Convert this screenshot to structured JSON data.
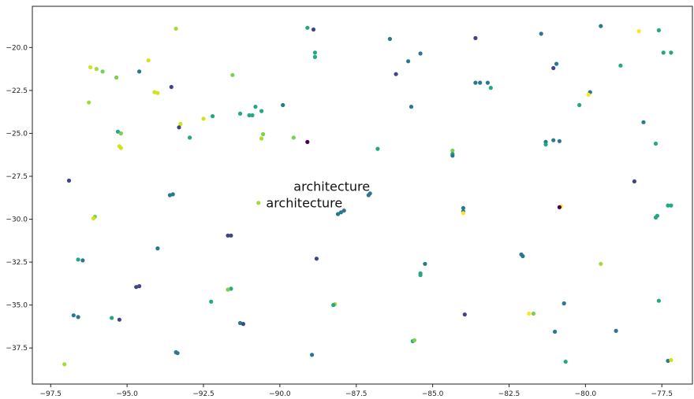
{
  "chart_data": {
    "type": "scatter",
    "title": "",
    "xlabel": "",
    "ylabel": "",
    "xlim": [
      -98.1,
      -76.5
    ],
    "ylim": [
      -39.6,
      -17.6
    ],
    "grid": false,
    "xticks": [
      -97.5,
      -95.0,
      -92.5,
      -90.0,
      -87.5,
      -85.0,
      -82.5,
      -80.0,
      -77.5
    ],
    "yticks": [
      -20.0,
      -22.5,
      -25.0,
      -27.5,
      -30.0,
      -32.5,
      -35.0,
      -37.5
    ],
    "annotations": [
      {
        "text": "architecture",
        "x": -89.55,
        "y": -28.35
      },
      {
        "text": "architecture",
        "x": -90.45,
        "y": -29.3
      }
    ],
    "points": [
      {
        "x": -93.4,
        "y": -18.9,
        "c": "#a5db36"
      },
      {
        "x": -89.1,
        "y": -18.85,
        "c": "#22a884"
      },
      {
        "x": -88.9,
        "y": -18.95,
        "c": "#414487"
      },
      {
        "x": -86.4,
        "y": -19.5,
        "c": "#2a788e"
      },
      {
        "x": -83.6,
        "y": -19.45,
        "c": "#414487"
      },
      {
        "x": -81.45,
        "y": -19.2,
        "c": "#2a788e"
      },
      {
        "x": -79.5,
        "y": -18.75,
        "c": "#2a788e"
      },
      {
        "x": -78.25,
        "y": -19.05,
        "c": "#fde725"
      },
      {
        "x": -77.6,
        "y": -19.0,
        "c": "#22a884"
      },
      {
        "x": -88.85,
        "y": -20.3,
        "c": "#22a884"
      },
      {
        "x": -88.85,
        "y": -20.55,
        "c": "#22a884"
      },
      {
        "x": -94.3,
        "y": -20.75,
        "c": "#d2e21b"
      },
      {
        "x": -85.4,
        "y": -20.35,
        "c": "#2a788e"
      },
      {
        "x": -85.8,
        "y": -20.8,
        "c": "#2a788e"
      },
      {
        "x": -80.95,
        "y": -20.95,
        "c": "#2a788e"
      },
      {
        "x": -81.05,
        "y": -21.2,
        "c": "#414487"
      },
      {
        "x": -78.85,
        "y": -21.05,
        "c": "#22a884"
      },
      {
        "x": -77.45,
        "y": -20.3,
        "c": "#22a884"
      },
      {
        "x": -77.2,
        "y": -20.3,
        "c": "#22a884"
      },
      {
        "x": -96.2,
        "y": -21.15,
        "c": "#d2e21b"
      },
      {
        "x": -96.0,
        "y": -21.25,
        "c": "#a5db36"
      },
      {
        "x": -95.8,
        "y": -21.4,
        "c": "#7ad151"
      },
      {
        "x": -95.35,
        "y": -21.75,
        "c": "#7ad151"
      },
      {
        "x": -94.6,
        "y": -21.4,
        "c": "#2a788e"
      },
      {
        "x": -91.55,
        "y": -21.6,
        "c": "#7ad151"
      },
      {
        "x": -86.2,
        "y": -21.55,
        "c": "#414487"
      },
      {
        "x": -93.55,
        "y": -22.3,
        "c": "#414487"
      },
      {
        "x": -94.1,
        "y": -22.6,
        "c": "#d2e21b"
      },
      {
        "x": -94.0,
        "y": -22.65,
        "c": "#d2e21b"
      },
      {
        "x": -83.6,
        "y": -22.05,
        "c": "#2a788e"
      },
      {
        "x": -83.45,
        "y": -22.05,
        "c": "#2a788e"
      },
      {
        "x": -83.2,
        "y": -22.05,
        "c": "#2a788e"
      },
      {
        "x": -83.1,
        "y": -22.35,
        "c": "#22a884"
      },
      {
        "x": -79.85,
        "y": -22.6,
        "c": "#2a788e"
      },
      {
        "x": -79.9,
        "y": -22.75,
        "c": "#fde725"
      },
      {
        "x": -96.25,
        "y": -23.2,
        "c": "#a5db36"
      },
      {
        "x": -89.9,
        "y": -23.35,
        "c": "#2a788e"
      },
      {
        "x": -90.8,
        "y": -23.45,
        "c": "#22a884"
      },
      {
        "x": -90.6,
        "y": -23.7,
        "c": "#22a884"
      },
      {
        "x": -91.3,
        "y": -23.85,
        "c": "#22a884"
      },
      {
        "x": -91.0,
        "y": -23.95,
        "c": "#22a884"
      },
      {
        "x": -90.9,
        "y": -23.95,
        "c": "#22a884"
      },
      {
        "x": -85.7,
        "y": -23.45,
        "c": "#2a788e"
      },
      {
        "x": -80.2,
        "y": -23.35,
        "c": "#22a884"
      },
      {
        "x": -92.2,
        "y": -24.0,
        "c": "#22a884"
      },
      {
        "x": -92.5,
        "y": -24.15,
        "c": "#d2e21b"
      },
      {
        "x": -93.25,
        "y": -24.45,
        "c": "#d2e21b"
      },
      {
        "x": -93.3,
        "y": -24.65,
        "c": "#414487"
      },
      {
        "x": -78.1,
        "y": -24.35,
        "c": "#2a788e"
      },
      {
        "x": -95.3,
        "y": -24.9,
        "c": "#22a884"
      },
      {
        "x": -95.2,
        "y": -25.0,
        "c": "#7ad151"
      },
      {
        "x": -92.95,
        "y": -25.25,
        "c": "#22a884"
      },
      {
        "x": -90.55,
        "y": -25.05,
        "c": "#7ad151"
      },
      {
        "x": -90.6,
        "y": -25.3,
        "c": "#a5db36"
      },
      {
        "x": -89.55,
        "y": -25.25,
        "c": "#7ad151"
      },
      {
        "x": -89.1,
        "y": -25.5,
        "c": "#440154"
      },
      {
        "x": -81.3,
        "y": -25.5,
        "c": "#2a788e"
      },
      {
        "x": -81.3,
        "y": -25.65,
        "c": "#22a884"
      },
      {
        "x": -81.05,
        "y": -25.4,
        "c": "#2a788e"
      },
      {
        "x": -80.85,
        "y": -25.45,
        "c": "#2a788e"
      },
      {
        "x": -77.7,
        "y": -25.6,
        "c": "#22a884"
      },
      {
        "x": -95.25,
        "y": -25.75,
        "c": "#d2e21b"
      },
      {
        "x": -95.2,
        "y": -25.85,
        "c": "#d2e21b"
      },
      {
        "x": -86.8,
        "y": -25.9,
        "c": "#22a884"
      },
      {
        "x": -84.35,
        "y": -26.0,
        "c": "#7ad151"
      },
      {
        "x": -84.35,
        "y": -26.2,
        "c": "#22a884"
      },
      {
        "x": -84.35,
        "y": -26.3,
        "c": "#2a788e"
      },
      {
        "x": -96.9,
        "y": -27.75,
        "c": "#414487"
      },
      {
        "x": -78.4,
        "y": -27.8,
        "c": "#414487"
      },
      {
        "x": -93.6,
        "y": -28.6,
        "c": "#2a788e"
      },
      {
        "x": -93.5,
        "y": -28.55,
        "c": "#2a788e"
      },
      {
        "x": -87.1,
        "y": -28.6,
        "c": "#2a788e"
      },
      {
        "x": -87.05,
        "y": -28.5,
        "c": "#2a788e"
      },
      {
        "x": -90.7,
        "y": -29.05,
        "c": "#a5db36"
      },
      {
        "x": -88.0,
        "y": -29.6,
        "c": "#2a788e"
      },
      {
        "x": -87.9,
        "y": -29.5,
        "c": "#2a788e"
      },
      {
        "x": -88.1,
        "y": -29.7,
        "c": "#2a788e"
      },
      {
        "x": -84.0,
        "y": -29.35,
        "c": "#2a788e"
      },
      {
        "x": -84.0,
        "y": -29.55,
        "c": "#2a788e"
      },
      {
        "x": -84.0,
        "y": -29.65,
        "c": "#fde725"
      },
      {
        "x": -80.8,
        "y": -29.25,
        "c": "#fde725"
      },
      {
        "x": -80.85,
        "y": -29.3,
        "c": "#440154"
      },
      {
        "x": -77.3,
        "y": -29.2,
        "c": "#22a884"
      },
      {
        "x": -77.2,
        "y": -29.2,
        "c": "#22a884"
      },
      {
        "x": -77.65,
        "y": -29.8,
        "c": "#22a884"
      },
      {
        "x": -77.7,
        "y": -29.9,
        "c": "#22a884"
      },
      {
        "x": -96.05,
        "y": -29.85,
        "c": "#7ad151"
      },
      {
        "x": -96.1,
        "y": -29.95,
        "c": "#d2e21b"
      },
      {
        "x": -91.7,
        "y": -30.95,
        "c": "#414487"
      },
      {
        "x": -91.6,
        "y": -30.95,
        "c": "#414487"
      },
      {
        "x": -94.0,
        "y": -31.7,
        "c": "#2a788e"
      },
      {
        "x": -82.1,
        "y": -32.05,
        "c": "#2a788e"
      },
      {
        "x": -82.05,
        "y": -32.15,
        "c": "#2a788e"
      },
      {
        "x": -96.6,
        "y": -32.35,
        "c": "#22a884"
      },
      {
        "x": -96.45,
        "y": -32.4,
        "c": "#2a788e"
      },
      {
        "x": -88.8,
        "y": -32.3,
        "c": "#414487"
      },
      {
        "x": -85.25,
        "y": -32.6,
        "c": "#2a788e"
      },
      {
        "x": -79.5,
        "y": -32.6,
        "c": "#a5db36"
      },
      {
        "x": -85.4,
        "y": -33.15,
        "c": "#22a884"
      },
      {
        "x": -85.4,
        "y": -33.25,
        "c": "#22a884"
      },
      {
        "x": -94.7,
        "y": -33.95,
        "c": "#414487"
      },
      {
        "x": -94.6,
        "y": -33.9,
        "c": "#414487"
      },
      {
        "x": -91.6,
        "y": -34.05,
        "c": "#22a884"
      },
      {
        "x": -91.7,
        "y": -34.1,
        "c": "#7ad151"
      },
      {
        "x": -77.6,
        "y": -34.75,
        "c": "#22a884"
      },
      {
        "x": -92.25,
        "y": -34.8,
        "c": "#22a884"
      },
      {
        "x": -88.2,
        "y": -34.95,
        "c": "#a5db36"
      },
      {
        "x": -88.25,
        "y": -35.0,
        "c": "#22a884"
      },
      {
        "x": -80.7,
        "y": -34.9,
        "c": "#2a788e"
      },
      {
        "x": -96.75,
        "y": -35.6,
        "c": "#2a788e"
      },
      {
        "x": -96.6,
        "y": -35.7,
        "c": "#2a788e"
      },
      {
        "x": -95.5,
        "y": -35.75,
        "c": "#22a884"
      },
      {
        "x": -95.25,
        "y": -35.85,
        "c": "#414487"
      },
      {
        "x": -83.95,
        "y": -35.55,
        "c": "#414487"
      },
      {
        "x": -81.85,
        "y": -35.5,
        "c": "#fde725"
      },
      {
        "x": -81.7,
        "y": -35.5,
        "c": "#7ad151"
      },
      {
        "x": -91.3,
        "y": -36.05,
        "c": "#2a788e"
      },
      {
        "x": -91.2,
        "y": -36.1,
        "c": "#414487"
      },
      {
        "x": -81.0,
        "y": -36.55,
        "c": "#2a788e"
      },
      {
        "x": -79.0,
        "y": -36.5,
        "c": "#2a788e"
      },
      {
        "x": -85.65,
        "y": -37.1,
        "c": "#22a884"
      },
      {
        "x": -85.6,
        "y": -37.05,
        "c": "#7ad151"
      },
      {
        "x": -93.4,
        "y": -37.75,
        "c": "#2a788e"
      },
      {
        "x": -93.35,
        "y": -37.8,
        "c": "#2a788e"
      },
      {
        "x": -88.95,
        "y": -37.9,
        "c": "#2a788e"
      },
      {
        "x": -80.65,
        "y": -38.3,
        "c": "#22a884"
      },
      {
        "x": -77.3,
        "y": -38.25,
        "c": "#2a788e"
      },
      {
        "x": -77.2,
        "y": -38.2,
        "c": "#d2e21b"
      },
      {
        "x": -97.05,
        "y": -38.45,
        "c": "#a5db36"
      }
    ]
  }
}
